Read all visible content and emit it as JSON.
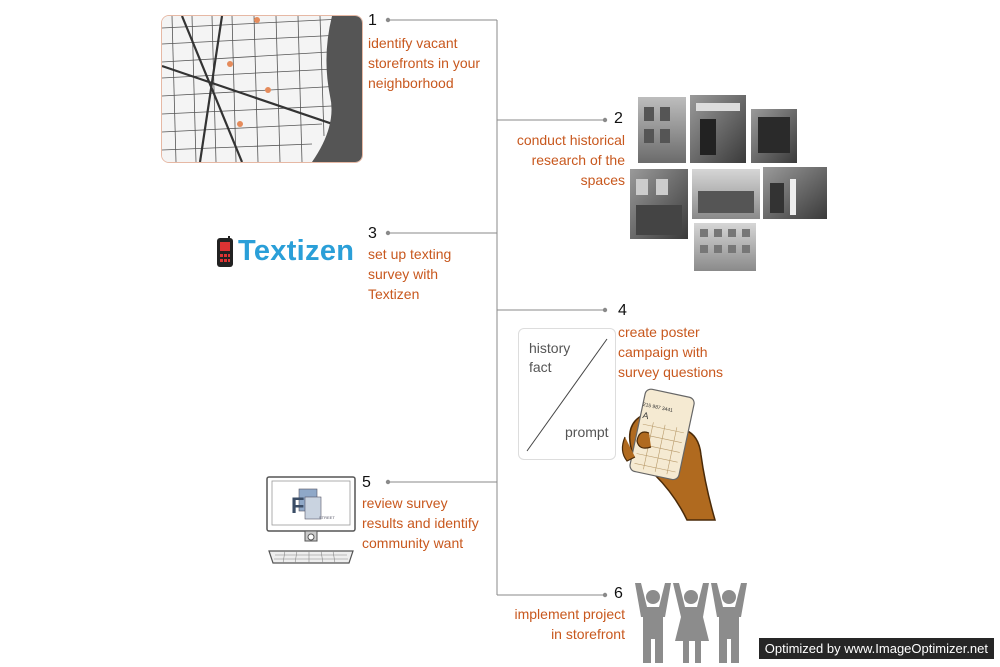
{
  "steps": [
    {
      "number": "1",
      "lines": [
        "identify vacant",
        "storefronts in your",
        "neighborhood"
      ]
    },
    {
      "number": "2",
      "lines": [
        "conduct historical",
        "research of the",
        "spaces"
      ]
    },
    {
      "number": "3",
      "lines": [
        "set up texting",
        "survey with",
        "Textizen"
      ]
    },
    {
      "number": "4",
      "lines": [
        "create poster",
        "campaign with",
        "survey questions"
      ]
    },
    {
      "number": "5",
      "lines": [
        "review survey",
        "results and identify",
        "community want"
      ]
    },
    {
      "number": "6",
      "lines": [
        "implement project",
        "in storefront"
      ]
    }
  ],
  "logo": {
    "name": "Textizen"
  },
  "poster": {
    "word1": "history",
    "word2": "fact",
    "word3": "prompt"
  },
  "phone": {
    "number": "215 987 3441",
    "letter": "A"
  },
  "monitor_logo": {
    "letter": "F",
    "caption": "STREET"
  },
  "watermark": "Optimized by www.ImageOptimizer.net",
  "colors": {
    "accent": "#c8581e",
    "line": "#8a8a8a",
    "textizen_blue": "#2a9fd8",
    "people": "#8c8c8c"
  }
}
